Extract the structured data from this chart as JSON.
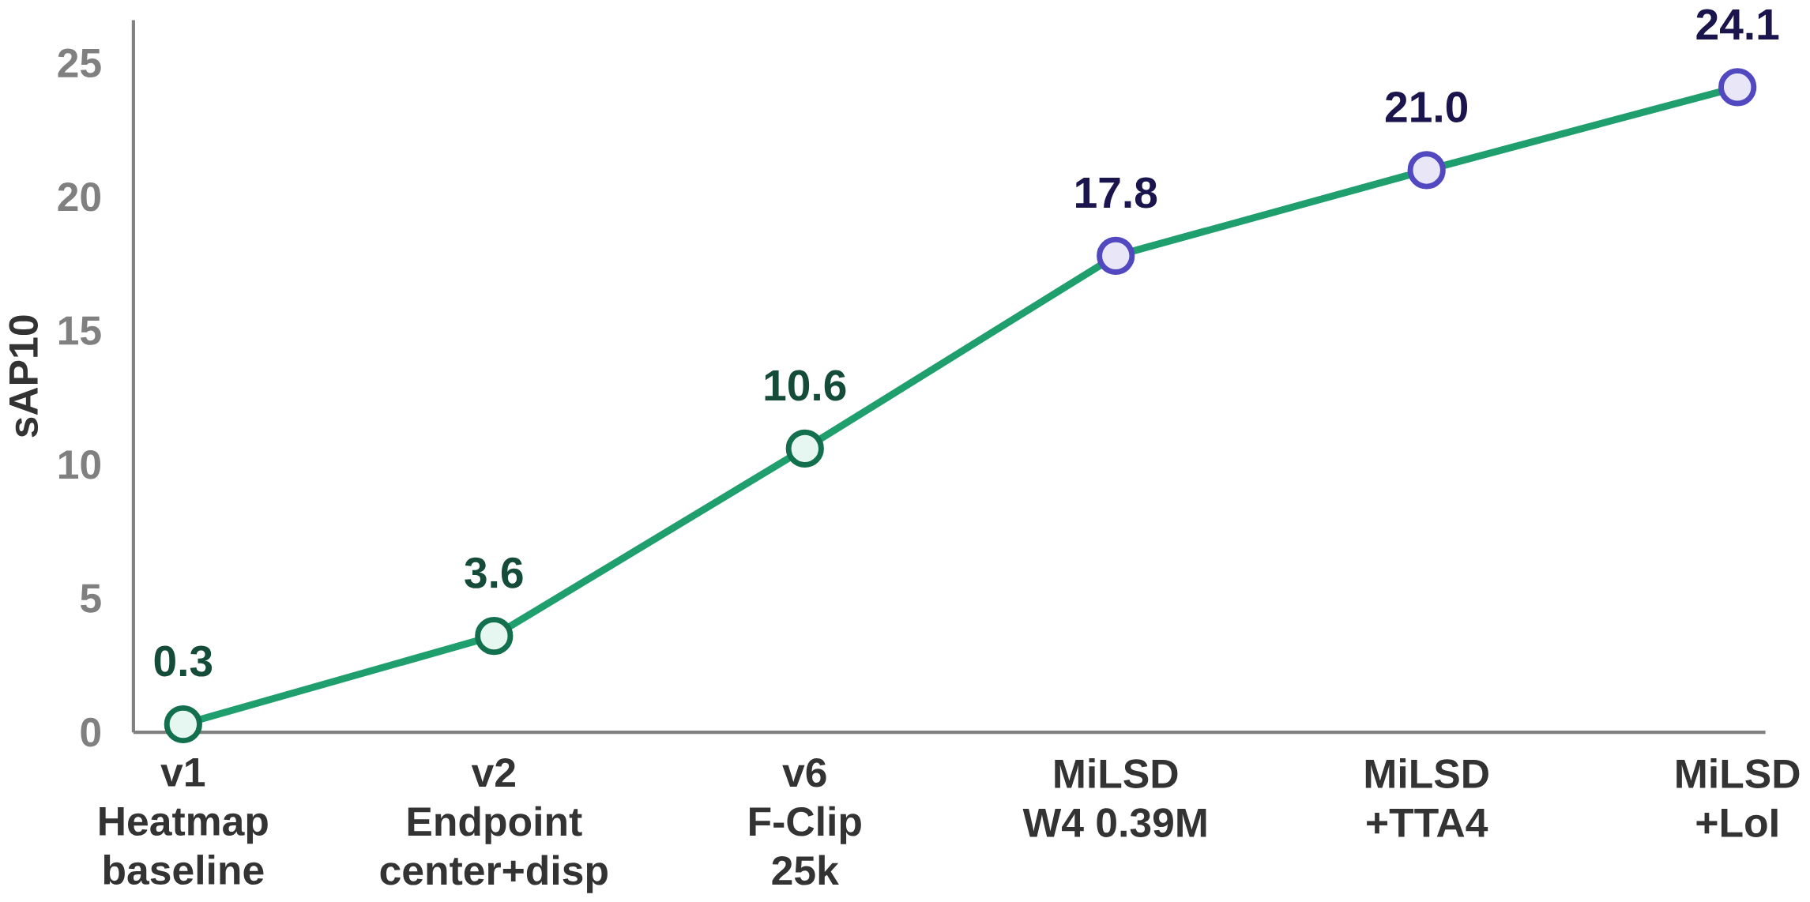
{
  "chart_data": {
    "type": "line",
    "ylabel": "sAP10",
    "categories": [
      "v1\nHeatmap\nbaseline",
      "v2\nEndpoint\ncenter+disp",
      "v6\nF-Clip\n25k",
      "MiLSD\nW4 0.39M",
      "MiLSD\n+TTA4",
      "MiLSD\n+LoI"
    ],
    "series": [
      {
        "color": "#1f9e6e",
        "values": [
          0.3,
          3.6,
          10.6,
          17.8,
          21.0,
          24.1
        ],
        "colors": [
          "#13704f",
          "#13704f",
          "#13704f",
          "#5248c0",
          "#5248c0",
          "#5248c0"
        ],
        "value_labels": [
          "0.3",
          "3.6",
          "10.6",
          "17.8",
          "21.0",
          "24.1"
        ]
      }
    ],
    "ylim": [
      0,
      26.6
    ],
    "yticks": [
      0,
      5,
      10,
      15,
      20,
      25
    ],
    "grid": false,
    "marker": "circle",
    "line_style": "solid"
  }
}
